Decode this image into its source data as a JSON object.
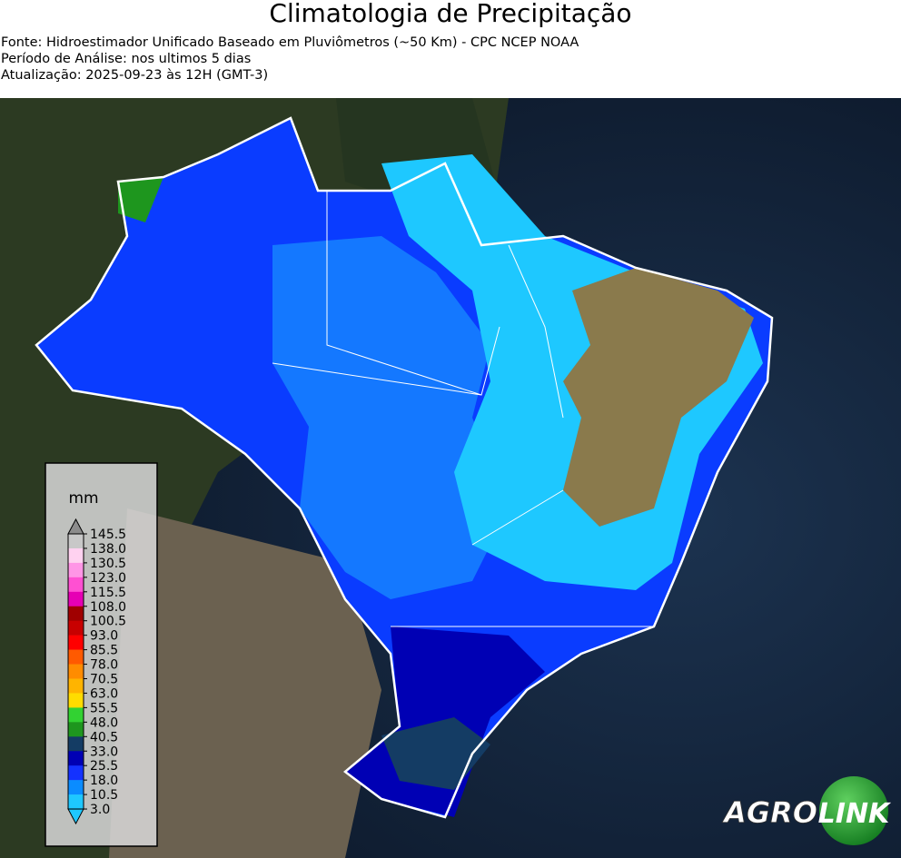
{
  "header": {
    "title": "Climatologia de Precipitação",
    "lines": [
      "Fonte: Hidroestimador Unificado Baseado em Pluviômetros (~50 Km) - CPC NCEP NOAA",
      "Período de Análise: nos ultimos 5 dias",
      "Atualização: 2025-09-23 às 12H (GMT-3)"
    ]
  },
  "legend": {
    "unit": "mm",
    "levels": [
      "145.5",
      "138.0",
      "130.5",
      "123.0",
      "115.5",
      "108.0",
      "100.5",
      "93.0",
      "85.5",
      "78.0",
      "70.5",
      "63.0",
      "55.5",
      "48.0",
      "40.5",
      "33.0",
      "25.5",
      "18.0",
      "10.5",
      "3.0"
    ],
    "colors": [
      "#c8c8c8",
      "#ffd2f0",
      "#ff96e6",
      "#ff50d2",
      "#e600b4",
      "#a00000",
      "#c80000",
      "#ff0000",
      "#ff5a00",
      "#ff8c00",
      "#ffb400",
      "#ffdc00",
      "#32d232",
      "#1e961e",
      "#143c64",
      "#0000b4",
      "#1432ff",
      "#0a8cff",
      "#1ec8ff"
    ],
    "extend_top_color": "#8c8c8c",
    "extend_bottom_color": "#1ec8ff"
  },
  "logo": {
    "left": "AGRO",
    "right": "LINK"
  }
}
